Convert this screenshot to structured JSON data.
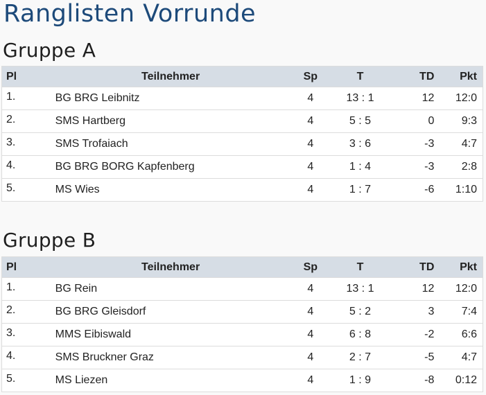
{
  "page_title": "Ranglisten Vorrunde",
  "columns": {
    "pl": "Pl",
    "name": "Teilnehmer",
    "sp": "Sp",
    "t": "T",
    "td": "TD",
    "pkt": "Pkt"
  },
  "groups": [
    {
      "title": "Gruppe A",
      "rows": [
        {
          "pl": "1.",
          "name": "BG BRG Leibnitz",
          "sp": "4",
          "t": "13 : 1",
          "td": "12",
          "pkt": "12:0"
        },
        {
          "pl": "2.",
          "name": "SMS Hartberg",
          "sp": "4",
          "t": "5 : 5",
          "td": "0",
          "pkt": "9:3"
        },
        {
          "pl": "3.",
          "name": "SMS Trofaiach",
          "sp": "4",
          "t": "3 : 6",
          "td": "-3",
          "pkt": "4:7"
        },
        {
          "pl": "4.",
          "name": "BG BRG BORG Kapfenberg",
          "sp": "4",
          "t": "1 : 4",
          "td": "-3",
          "pkt": "2:8"
        },
        {
          "pl": "5.",
          "name": "MS Wies",
          "sp": "4",
          "t": "1 : 7",
          "td": "-6",
          "pkt": "1:10"
        }
      ]
    },
    {
      "title": "Gruppe B",
      "rows": [
        {
          "pl": "1.",
          "name": "BG Rein",
          "sp": "4",
          "t": "13 : 1",
          "td": "12",
          "pkt": "12:0"
        },
        {
          "pl": "2.",
          "name": "BG BRG Gleisdorf",
          "sp": "4",
          "t": "5 : 2",
          "td": "3",
          "pkt": "7:4"
        },
        {
          "pl": "3.",
          "name": "MMS Eibiswald",
          "sp": "4",
          "t": "6 : 8",
          "td": "-2",
          "pkt": "6:6"
        },
        {
          "pl": "4.",
          "name": "SMS Bruckner Graz",
          "sp": "4",
          "t": "2 : 7",
          "td": "-5",
          "pkt": "4:7"
        },
        {
          "pl": "5.",
          "name": "MS Liezen",
          "sp": "4",
          "t": "1 : 9",
          "td": "-8",
          "pkt": "0:12"
        }
      ]
    }
  ]
}
